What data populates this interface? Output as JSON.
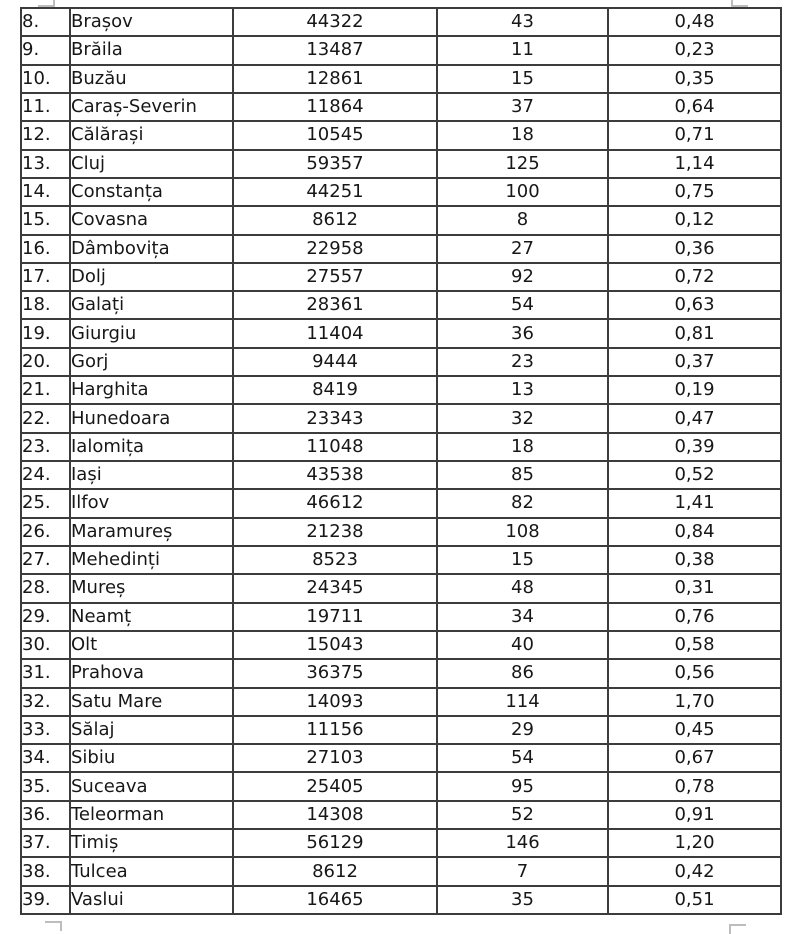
{
  "colors": {
    "border": "#3c3c3c",
    "text": "#171717",
    "artifact": "#bdbdbd",
    "page_background": "#ffffff"
  },
  "table": {
    "type": "table",
    "description": "Scanned document table fragment, rows 8-39, no visible headers",
    "column_names": [
      "row-number-cell",
      "county-name-cell",
      "count-value-cell",
      "cases-value-cell",
      "rate-value-cell"
    ],
    "rows": [
      [
        "8.",
        "Brașov",
        "44322",
        "43",
        "0,48"
      ],
      [
        "9.",
        "Brăila",
        "13487",
        "11",
        "0,23"
      ],
      [
        "10.",
        "Buzău",
        "12861",
        "15",
        "0,35"
      ],
      [
        "11.",
        "Caraș-Severin",
        "11864",
        "37",
        "0,64"
      ],
      [
        "12.",
        "Călărași",
        "10545",
        "18",
        "0,71"
      ],
      [
        "13.",
        "Cluj",
        "59357",
        "125",
        "1,14"
      ],
      [
        "14.",
        "Constanța",
        "44251",
        "100",
        "0,75"
      ],
      [
        "15.",
        "Covasna",
        "8612",
        "8",
        "0,12"
      ],
      [
        "16.",
        "Dâmbovița",
        "22958",
        "27",
        "0,36"
      ],
      [
        "17.",
        "Dolj",
        "27557",
        "92",
        "0,72"
      ],
      [
        "18.",
        "Galați",
        "28361",
        "54",
        "0,63"
      ],
      [
        "19.",
        "Giurgiu",
        "11404",
        "36",
        "0,81"
      ],
      [
        "20.",
        "Gorj",
        "9444",
        "23",
        "0,37"
      ],
      [
        "21.",
        "Harghita",
        "8419",
        "13",
        "0,19"
      ],
      [
        "22.",
        "Hunedoara",
        "23343",
        "32",
        "0,47"
      ],
      [
        "23.",
        "Ialomița",
        "11048",
        "18",
        "0,39"
      ],
      [
        "24.",
        "Iași",
        "43538",
        "85",
        "0,52"
      ],
      [
        "25.",
        "Ilfov",
        "46612",
        "82",
        "1,41"
      ],
      [
        "26.",
        "Maramureș",
        "21238",
        "108",
        "0,84"
      ],
      [
        "27.",
        "Mehedinți",
        "8523",
        "15",
        "0,38"
      ],
      [
        "28.",
        "Mureș",
        "24345",
        "48",
        "0,31"
      ],
      [
        "29.",
        "Neamț",
        "19711",
        "34",
        "0,76"
      ],
      [
        "30.",
        "Olt",
        "15043",
        "40",
        "0,58"
      ],
      [
        "31.",
        "Prahova",
        "36375",
        "86",
        "0,56"
      ],
      [
        "32.",
        "Satu Mare",
        "14093",
        "114",
        "1,70"
      ],
      [
        "33.",
        "Sălaj",
        "11156",
        "29",
        "0,45"
      ],
      [
        "34.",
        "Sibiu",
        "27103",
        "54",
        "0,67"
      ],
      [
        "35.",
        "Suceava",
        "25405",
        "95",
        "0,78"
      ],
      [
        "36.",
        "Teleorman",
        "14308",
        "52",
        "0,91"
      ],
      [
        "37.",
        "Timiș",
        "56129",
        "146",
        "1,20"
      ],
      [
        "38.",
        "Tulcea",
        "8612",
        "7",
        "0,42"
      ],
      [
        "39.",
        "Vaslui",
        "16465",
        "35",
        "0,51"
      ]
    ]
  }
}
